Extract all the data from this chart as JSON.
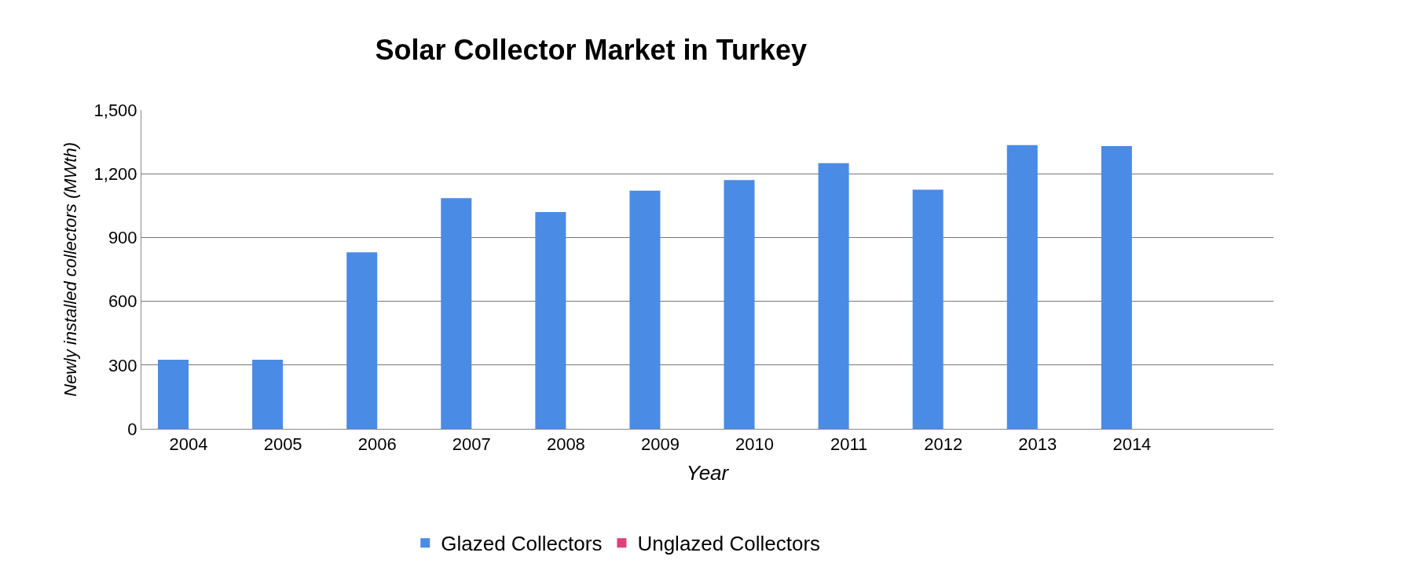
{
  "chart_data": {
    "type": "bar",
    "title": "Solar Collector Market in Turkey",
    "xlabel": "Year",
    "ylabel": "Newly installed collectors (MWth)",
    "categories": [
      "2004",
      "2005",
      "2006",
      "2007",
      "2008",
      "2009",
      "2010",
      "2011",
      "2012",
      "2013",
      "2014"
    ],
    "series": [
      {
        "name": "Glazed Collectors",
        "color": "#4a8be6",
        "values": [
          325,
          325,
          830,
          1085,
          1020,
          1120,
          1170,
          1250,
          1125,
          1335,
          1330
        ]
      },
      {
        "name": "Unglazed Collectors",
        "color": "#e0407a",
        "values": [
          0,
          0,
          0,
          0,
          0,
          0,
          0,
          0,
          0,
          0,
          0
        ]
      }
    ],
    "ylim": [
      0,
      1500
    ],
    "yticks": [
      0,
      300,
      600,
      900,
      {
        "value": 1200,
        "label": "1,200"
      },
      {
        "value": 1500,
        "label": "1,500"
      }
    ],
    "grid": "y",
    "legend": "bottom"
  }
}
